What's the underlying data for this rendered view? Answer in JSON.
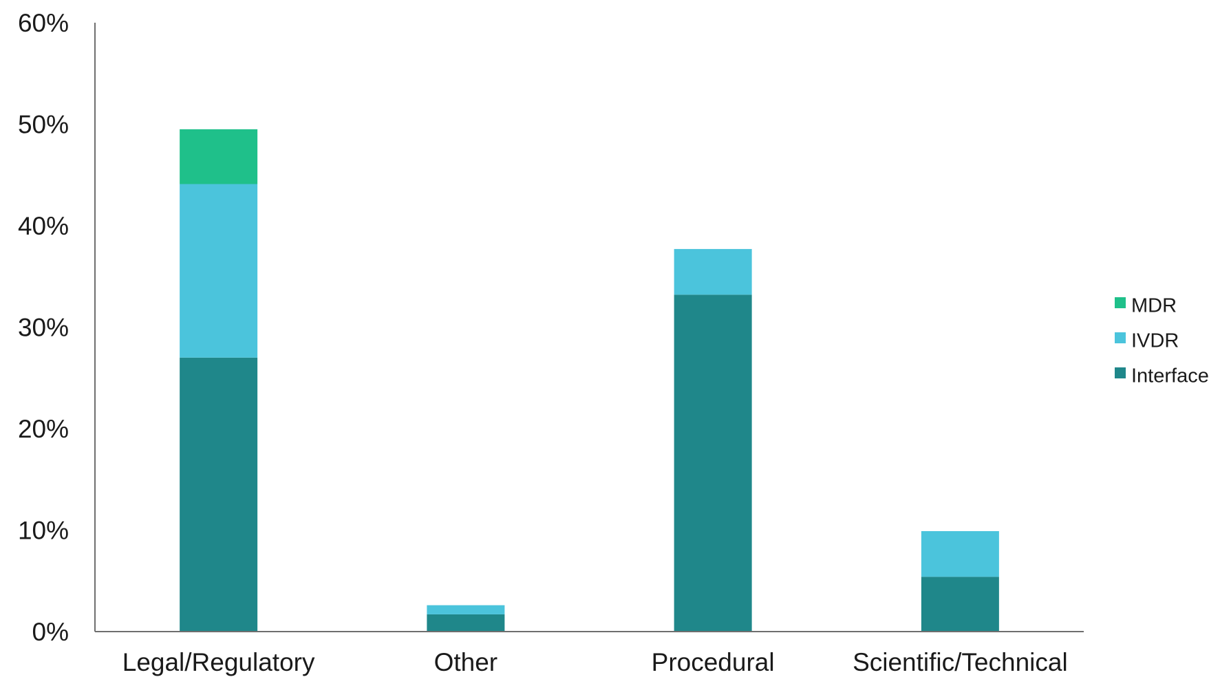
{
  "chart_data": {
    "type": "bar",
    "stacked": true,
    "categories": [
      "Legal/Regulatory",
      "Other",
      "Procedural",
      "Scientific/Technical"
    ],
    "series": [
      {
        "name": "Interface",
        "color": "#1f878a",
        "values": [
          27,
          1.7,
          33.2,
          5.4
        ]
      },
      {
        "name": "IVDR",
        "color": "#4bc4dc",
        "values": [
          17.1,
          0.9,
          4.5,
          4.5
        ]
      },
      {
        "name": "MDR",
        "color": "#1fc08a",
        "values": [
          5.4,
          0,
          0,
          0
        ]
      }
    ],
    "ylim": [
      0,
      60
    ],
    "yticks": [
      0,
      10,
      20,
      30,
      40,
      50,
      60
    ],
    "ytick_format": "%",
    "grid": false,
    "legend_position": "right",
    "legend_order": [
      "MDR",
      "IVDR",
      "Interface"
    ]
  }
}
